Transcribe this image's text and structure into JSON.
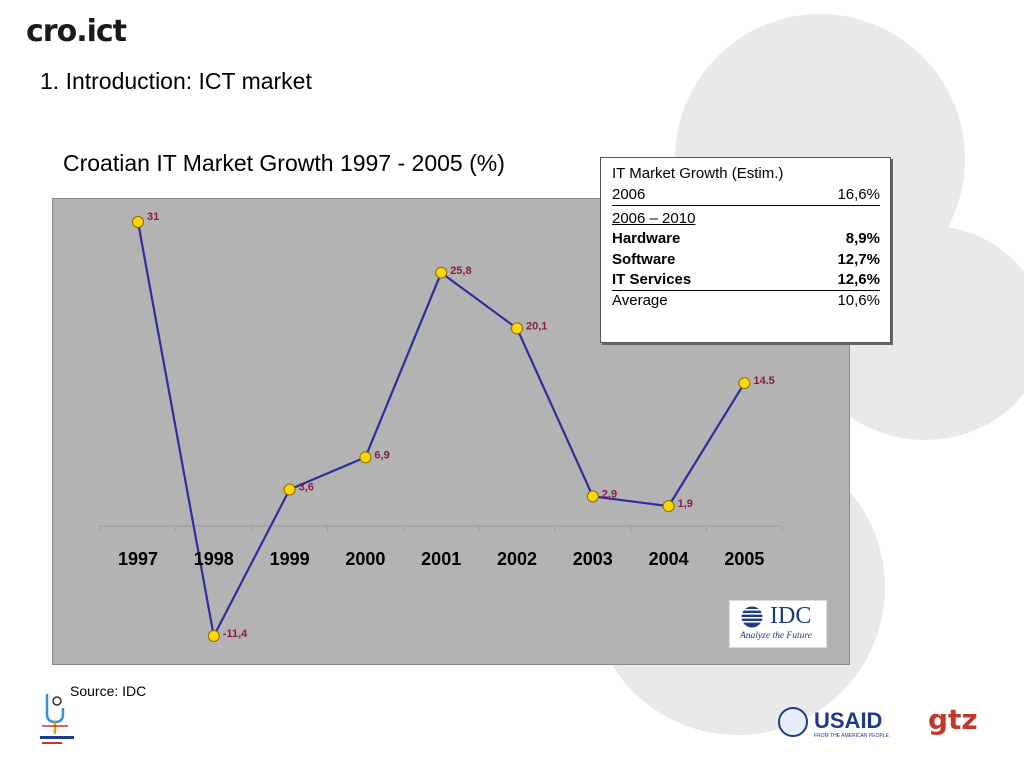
{
  "header": {
    "logo_text": "cro.ict",
    "slide_title": "1. Introduction: ICT market"
  },
  "chart_data": {
    "type": "line",
    "title": "Croatian IT Market Growth 1997 - 2005  (%)",
    "categories": [
      "1997",
      "1998",
      "1999",
      "2000",
      "2001",
      "2002",
      "2003",
      "2004",
      "2005"
    ],
    "values": [
      31,
      -11.4,
      3.6,
      6.9,
      25.8,
      20.1,
      2.9,
      1.9,
      14.5
    ],
    "data_labels": [
      "31",
      "-11,4",
      "3,6",
      "6,9",
      "25,8",
      "20,1",
      "2,9",
      "1,9",
      "14.5"
    ],
    "series": [
      {
        "values": [
          31,
          -11.4,
          3.6,
          6.9,
          25.8,
          20.1,
          2.9,
          1.9,
          14.5
        ]
      }
    ],
    "xlabel": "",
    "ylabel": "",
    "ylim": [
      -12,
      32
    ],
    "grid": false,
    "colors": {
      "line": "#2e2e9c",
      "marker_fill": "#ffd700",
      "marker_stroke": "#8a6d00",
      "label": "#8b1a4a",
      "plot_bg": "#b3b3b3"
    }
  },
  "info_box": {
    "heading": "IT Market Growth  (Estim.)",
    "year_2006_label": "2006",
    "year_2006_value": "16,6%",
    "period_label": "2006 – 2010",
    "rows": [
      {
        "label": "Hardware",
        "value": "8,9%"
      },
      {
        "label": "Software",
        "value": "12,7%"
      },
      {
        "label": "IT Services",
        "value": "12,6%"
      }
    ],
    "average_label": "Average",
    "average_value": "10,6%"
  },
  "idc_logo": {
    "name": "IDC",
    "tagline": "Analyze the Future"
  },
  "source": "Source: IDC",
  "footer": {
    "usaid_text": "USAID",
    "usaid_sub": "FROM THE AMERICAN PEOPLE",
    "gtz_text": "gtz"
  }
}
